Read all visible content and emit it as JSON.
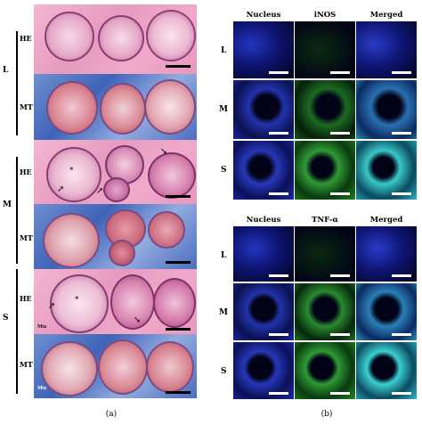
{
  "panel_a": {
    "caption": "(a)",
    "groups": [
      {
        "label": "L",
        "rows": [
          {
            "stain": "HE"
          },
          {
            "stain": "MT"
          }
        ]
      },
      {
        "label": "M",
        "rows": [
          {
            "stain": "HE"
          },
          {
            "stain": "MT"
          }
        ]
      },
      {
        "label": "S",
        "rows": [
          {
            "stain": "HE"
          },
          {
            "stain": "MT"
          }
        ]
      }
    ],
    "annotations": {
      "mu_1": "Mu",
      "mu_2": "Mu",
      "asterisk": "*"
    }
  },
  "panel_b": {
    "caption": "(b)",
    "blocks": [
      {
        "headers": [
          "Nucleus",
          "iNOS",
          "Merged"
        ],
        "rows": [
          "L",
          "M",
          "S"
        ]
      },
      {
        "headers": [
          "Nucleus",
          "TNF-α",
          "Merged"
        ],
        "rows": [
          "L",
          "M",
          "S"
        ]
      }
    ]
  },
  "colors": {
    "he_stain": "#e99bbf",
    "mt_stain": "#4a6ec0",
    "nucleus_channel": "#2233cc",
    "marker_channel": "#22aa33",
    "merged_channel": "#22bbcc"
  }
}
